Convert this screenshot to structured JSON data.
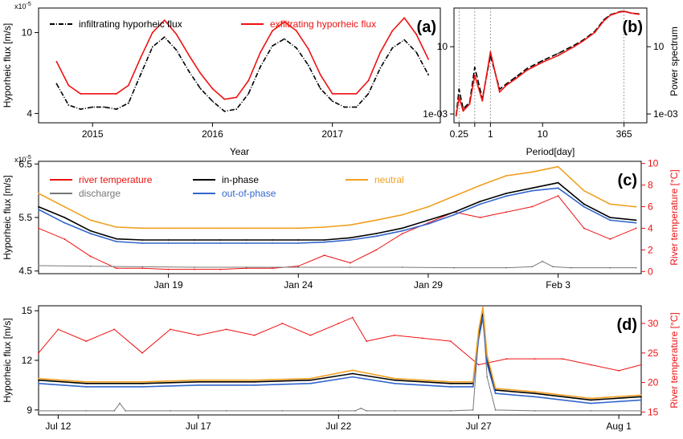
{
  "chart_data": [
    {
      "id": "a",
      "type": "line",
      "panel_label": "(a)",
      "xlabel": "Year",
      "ylabel": "Hyporheic flux [m/s]",
      "y_multiplier": "x10",
      "y_multiplier_exp": "-5",
      "x_ticks": [
        "2015",
        "2016",
        "2017"
      ],
      "x_tick_values": [
        2015,
        2016,
        2017
      ],
      "xlim": [
        2014.55,
        2017.9
      ],
      "y_ticks": [
        "4",
        "10"
      ],
      "y_tick_values": [
        4,
        10
      ],
      "ylim": [
        3.6,
        13.2
      ],
      "y_scale": "log",
      "legend_position": "top",
      "series": [
        {
          "name": "infiltrating hyporheic flux",
          "color": "#000000",
          "style": "dash-dot",
          "x": [
            2014.7,
            2014.8,
            2014.9,
            2015.0,
            2015.1,
            2015.2,
            2015.3,
            2015.4,
            2015.5,
            2015.6,
            2015.7,
            2015.8,
            2015.9,
            2016.0,
            2016.1,
            2016.2,
            2016.3,
            2016.4,
            2016.5,
            2016.6,
            2016.7,
            2016.8,
            2016.9,
            2017.0,
            2017.1,
            2017.2,
            2017.3,
            2017.4,
            2017.5,
            2017.6,
            2017.7,
            2017.8
          ],
          "values": [
            5.6,
            4.4,
            4.2,
            4.3,
            4.3,
            4.2,
            4.5,
            6.2,
            8.5,
            9.5,
            8.2,
            6.5,
            5.3,
            4.6,
            4.1,
            4.2,
            5.0,
            6.8,
            8.6,
            9.3,
            8.4,
            6.9,
            5.3,
            4.6,
            4.3,
            4.3,
            5.0,
            6.7,
            8.4,
            9.2,
            8.0,
            6.2
          ]
        },
        {
          "name": "exfiltrating hyporheic flux",
          "color": "#ee1111",
          "style": "solid",
          "x": [
            2014.7,
            2014.8,
            2014.9,
            2015.0,
            2015.1,
            2015.2,
            2015.3,
            2015.4,
            2015.5,
            2015.6,
            2015.7,
            2015.8,
            2015.9,
            2016.0,
            2016.1,
            2016.2,
            2016.3,
            2016.4,
            2016.5,
            2016.6,
            2016.7,
            2016.8,
            2016.9,
            2017.0,
            2017.1,
            2017.2,
            2017.3,
            2017.4,
            2017.5,
            2017.6,
            2017.7,
            2017.8
          ],
          "values": [
            7.2,
            5.5,
            5.0,
            5.0,
            5.0,
            5.0,
            5.5,
            7.5,
            10.0,
            11.5,
            9.8,
            7.8,
            6.3,
            5.3,
            4.7,
            4.8,
            5.8,
            8.0,
            10.2,
            11.3,
            10.2,
            8.3,
            6.2,
            5.0,
            5.0,
            5.0,
            5.8,
            8.0,
            10.2,
            11.8,
            9.8,
            7.4
          ]
        }
      ]
    },
    {
      "id": "b",
      "type": "line",
      "panel_label": "(b)",
      "xlabel": "Period[day]",
      "ylabel": "Power spectrum",
      "x_ticks": [
        "0.25",
        "0.5",
        "1",
        "10",
        "365"
      ],
      "x_tick_values": [
        0.25,
        0.5,
        1,
        10,
        365
      ],
      "x_tick_labels_shown": [
        "0.25",
        "1",
        "10",
        "365"
      ],
      "x_scale": "log",
      "xlim": [
        0.2,
        1000
      ],
      "y_ticks": [
        "1e-03",
        "10"
      ],
      "y_tick_values": [
        0.001,
        10
      ],
      "y_scale": "log",
      "ylim": [
        0.0003,
        2000
      ],
      "vertical_reference_lines": [
        0.25,
        0.5,
        1,
        365
      ],
      "series": [
        {
          "name": "infiltrating hyporheic flux",
          "color": "#000000",
          "style": "dashed",
          "x": [
            0.22,
            0.25,
            0.3,
            0.4,
            0.5,
            0.7,
            1,
            1.5,
            2,
            3,
            5,
            10,
            20,
            40,
            60,
            100,
            150,
            200,
            300,
            365,
            500,
            700
          ],
          "values": [
            0.0008,
            0.03,
            0.002,
            0.005,
            0.6,
            0.008,
            3,
            0.03,
            0.06,
            0.15,
            0.5,
            1.5,
            4,
            12,
            25,
            80,
            400,
            800,
            1200,
            1300,
            1000,
            900
          ]
        },
        {
          "name": "exfiltrating hyporheic flux",
          "color": "#ee1111",
          "style": "solid",
          "x": [
            0.22,
            0.25,
            0.3,
            0.4,
            0.5,
            0.7,
            1,
            1.5,
            2,
            3,
            5,
            10,
            20,
            40,
            60,
            100,
            150,
            200,
            300,
            365,
            500,
            700
          ],
          "values": [
            0.0008,
            0.01,
            0.0015,
            0.004,
            0.2,
            0.006,
            5,
            0.02,
            0.05,
            0.12,
            0.4,
            1.2,
            3,
            10,
            22,
            70,
            350,
            750,
            1150,
            1250,
            1000,
            850
          ]
        }
      ]
    },
    {
      "id": "c",
      "type": "line",
      "panel_label": "(c)",
      "ylabel": "Hyporheic flux [m/s]",
      "y_multiplier": "x10",
      "y_multiplier_exp": "-5",
      "y2label": "River temperature [°C]",
      "x_ticks": [
        "Jan 19",
        "Jan 24",
        "Jan 29",
        "Feb 3"
      ],
      "x_tick_values": [
        19,
        24,
        29,
        34
      ],
      "xlim": [
        14.0,
        37.2
      ],
      "y_ticks": [
        "4.5",
        "5.5",
        "6.5"
      ],
      "y_tick_values": [
        4.5,
        5.5,
        6.5
      ],
      "ylim": [
        4.45,
        6.55
      ],
      "y2_ticks": [
        "0",
        "2",
        "4",
        "6",
        "8",
        "10"
      ],
      "y2_tick_values": [
        0,
        2,
        4,
        6,
        8,
        10
      ],
      "y2lim": [
        -0.2,
        10.2
      ],
      "legend_position": "top",
      "series": [
        {
          "name": "river temperature",
          "axis": "right",
          "color": "#ee1111",
          "style": "solid",
          "x": [
            14,
            15,
            16,
            17,
            18,
            19,
            20,
            21,
            22,
            23,
            24,
            25,
            26,
            27,
            28,
            29,
            30,
            31,
            32,
            33,
            34,
            35,
            36,
            37
          ],
          "values": [
            4,
            3,
            1.4,
            0.3,
            0.3,
            0.2,
            0.2,
            0.2,
            0.3,
            0.3,
            0.5,
            1.5,
            0.8,
            2.0,
            3.5,
            4.5,
            5.5,
            5.0,
            5.5,
            6.0,
            7.0,
            4.0,
            3.0,
            4.0
          ]
        },
        {
          "name": "discharge",
          "color": "#777777",
          "style": "solid",
          "x": [
            14,
            16,
            18,
            20,
            22,
            24,
            26,
            28,
            30,
            32,
            33.0,
            33.4,
            33.8,
            34.5,
            36,
            37
          ],
          "values": [
            4.6,
            4.59,
            4.58,
            4.57,
            4.57,
            4.57,
            4.57,
            4.57,
            4.56,
            4.56,
            4.58,
            4.68,
            4.58,
            4.56,
            4.56,
            4.56
          ]
        },
        {
          "name": "in-phase",
          "color": "#000000",
          "style": "solid",
          "x": [
            14,
            15,
            16,
            17,
            18,
            19,
            20,
            21,
            22,
            23,
            24,
            25,
            26,
            27,
            28,
            29,
            30,
            31,
            32,
            33,
            34,
            35,
            36,
            37
          ],
          "values": [
            5.7,
            5.5,
            5.25,
            5.1,
            5.08,
            5.08,
            5.08,
            5.08,
            5.08,
            5.08,
            5.08,
            5.08,
            5.12,
            5.2,
            5.3,
            5.45,
            5.6,
            5.8,
            5.95,
            6.05,
            6.15,
            5.75,
            5.5,
            5.45
          ]
        },
        {
          "name": "out-of-phase",
          "color": "#3366cc",
          "style": "solid",
          "x": [
            14,
            15,
            16,
            17,
            18,
            19,
            20,
            21,
            22,
            23,
            24,
            25,
            26,
            27,
            28,
            29,
            30,
            31,
            32,
            33,
            34,
            35,
            36,
            37
          ],
          "values": [
            5.65,
            5.4,
            5.2,
            5.05,
            5.02,
            5.02,
            5.02,
            5.02,
            5.02,
            5.02,
            5.02,
            5.04,
            5.08,
            5.15,
            5.25,
            5.38,
            5.55,
            5.75,
            5.9,
            6.0,
            6.05,
            5.7,
            5.45,
            5.4
          ]
        },
        {
          "name": "neutral",
          "color": "#f0a020",
          "style": "solid",
          "x": [
            14,
            15,
            16,
            17,
            18,
            19,
            20,
            21,
            22,
            23,
            24,
            25,
            26,
            27,
            28,
            29,
            30,
            31,
            32,
            33,
            34,
            35,
            36,
            37
          ],
          "values": [
            5.95,
            5.7,
            5.45,
            5.32,
            5.3,
            5.3,
            5.3,
            5.3,
            5.3,
            5.3,
            5.3,
            5.32,
            5.36,
            5.45,
            5.55,
            5.7,
            5.9,
            6.1,
            6.28,
            6.35,
            6.45,
            6.0,
            5.75,
            5.7
          ]
        }
      ]
    },
    {
      "id": "d",
      "type": "line",
      "panel_label": "(d)",
      "ylabel": "Hyporheic flux [m/s]",
      "y2label": "River temperature [°C]",
      "x_ticks": [
        "Jul 12",
        "Jul 17",
        "Jul 22",
        "Jul 27",
        "Aug 1"
      ],
      "x_tick_values": [
        12,
        17,
        22,
        27,
        32
      ],
      "xlim": [
        11.3,
        32.8
      ],
      "y_ticks": [
        "9",
        "12",
        "15"
      ],
      "y_tick_values": [
        9,
        12,
        15
      ],
      "ylim": [
        8.7,
        15.3
      ],
      "y2_ticks": [
        "15",
        "20",
        "25",
        "30"
      ],
      "y2_tick_values": [
        15,
        20,
        25,
        30
      ],
      "y2lim": [
        14.5,
        33
      ],
      "series": [
        {
          "name": "river temperature",
          "axis": "right",
          "color": "#ee1111",
          "style": "solid",
          "x": [
            11.3,
            12,
            13,
            14,
            15,
            16,
            17,
            18,
            19,
            20,
            21,
            22,
            22.5,
            23,
            24,
            25,
            26,
            27,
            28,
            29,
            30,
            31,
            32,
            32.8
          ],
          "values": [
            25,
            29,
            27,
            29,
            25,
            29,
            28,
            29,
            28,
            30,
            28,
            30,
            31,
            27,
            28,
            27.5,
            27,
            23,
            24,
            24,
            24,
            23,
            22,
            23
          ]
        },
        {
          "name": "discharge",
          "color": "#777777",
          "style": "solid",
          "x": [
            11.3,
            13,
            14.0,
            14.2,
            14.4,
            16,
            18,
            20,
            22,
            22.6,
            22.8,
            23.0,
            24,
            26,
            26.8,
            27.0,
            27.15,
            27.3,
            27.6,
            29,
            31,
            32.8
          ],
          "values": [
            8.95,
            8.95,
            8.95,
            9.4,
            8.95,
            8.95,
            8.95,
            8.95,
            8.95,
            8.95,
            9.1,
            8.95,
            8.95,
            8.95,
            9.0,
            13.5,
            14.9,
            11.0,
            9.0,
            8.95,
            8.95,
            8.95
          ]
        },
        {
          "name": "in-phase",
          "color": "#000000",
          "style": "solid",
          "x": [
            11.3,
            13,
            15,
            17,
            19,
            21,
            22.5,
            24,
            26,
            26.8,
            27.0,
            27.15,
            27.3,
            27.6,
            29,
            31,
            32.8
          ],
          "values": [
            10.8,
            10.6,
            10.6,
            10.7,
            10.7,
            10.8,
            11.2,
            10.8,
            10.6,
            10.6,
            13.5,
            14.8,
            12.0,
            10.2,
            10.0,
            9.6,
            9.8
          ]
        },
        {
          "name": "out-of-phase",
          "color": "#3366cc",
          "style": "solid",
          "x": [
            11.3,
            13,
            15,
            17,
            19,
            21,
            22.5,
            24,
            26,
            26.8,
            27.0,
            27.15,
            27.3,
            27.6,
            29,
            31,
            32.8
          ],
          "values": [
            10.6,
            10.4,
            10.4,
            10.5,
            10.5,
            10.6,
            11.0,
            10.6,
            10.4,
            10.4,
            13.3,
            14.6,
            11.8,
            10.0,
            9.8,
            9.4,
            9.6
          ]
        },
        {
          "name": "neutral",
          "color": "#f0a020",
          "style": "solid",
          "x": [
            11.3,
            13,
            15,
            17,
            19,
            21,
            22.5,
            24,
            26,
            26.8,
            27.0,
            27.15,
            27.3,
            27.6,
            29,
            31,
            32.8
          ],
          "values": [
            10.9,
            10.7,
            10.7,
            10.8,
            10.8,
            10.9,
            11.4,
            10.9,
            10.7,
            10.7,
            13.8,
            15.2,
            12.3,
            10.3,
            10.1,
            9.7,
            9.9
          ]
        }
      ]
    }
  ]
}
